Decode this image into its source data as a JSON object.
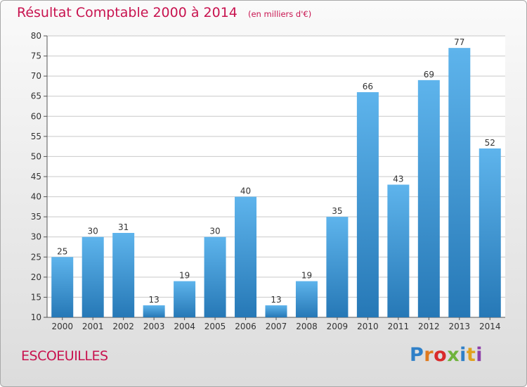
{
  "title": "Résultat Comptable 2000 à 2014",
  "subtitle": "(en milliers d'€)",
  "commune": "ESCOEUILLES",
  "brand": {
    "letters": [
      "P",
      "r",
      "o",
      "x",
      "i",
      "t",
      "i"
    ],
    "colors": [
      "#2f80c8",
      "#e07a1f",
      "#d92b2b",
      "#6fb33c",
      "#2f80c8",
      "#e0a21f",
      "#8e3fa8"
    ]
  },
  "colors": {
    "bar_light": "#5eb4ec",
    "bar_dark": "#2678b6",
    "title": "#c8134f",
    "grid": "#c9c9c9"
  },
  "chart_data": {
    "type": "bar",
    "title": "Résultat Comptable 2000 à 2014",
    "subtitle": "(en milliers d'€)",
    "categories": [
      "2000",
      "2001",
      "2002",
      "2003",
      "2004",
      "2005",
      "2006",
      "2007",
      "2008",
      "2009",
      "2010",
      "2011",
      "2012",
      "2013",
      "2014"
    ],
    "values": [
      25,
      30,
      31,
      13,
      19,
      30,
      40,
      13,
      19,
      35,
      66,
      43,
      69,
      77,
      52
    ],
    "ylim": [
      10,
      80
    ],
    "yticks": [
      10,
      15,
      20,
      25,
      30,
      35,
      40,
      45,
      50,
      55,
      60,
      65,
      70,
      75,
      80
    ],
    "grid": true,
    "data_labels": true
  }
}
